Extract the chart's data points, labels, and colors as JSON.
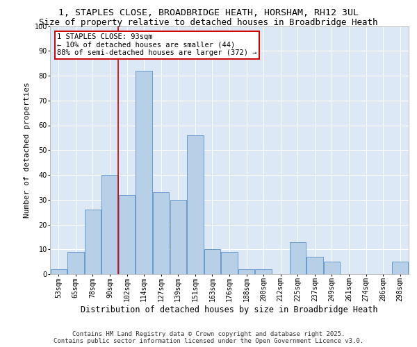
{
  "title_line1": "1, STAPLES CLOSE, BROADBRIDGE HEATH, HORSHAM, RH12 3UL",
  "title_line2": "Size of property relative to detached houses in Broadbridge Heath",
  "xlabel": "Distribution of detached houses by size in Broadbridge Heath",
  "ylabel": "Number of detached properties",
  "categories": [
    "53sqm",
    "65sqm",
    "78sqm",
    "90sqm",
    "102sqm",
    "114sqm",
    "127sqm",
    "139sqm",
    "151sqm",
    "163sqm",
    "176sqm",
    "188sqm",
    "200sqm",
    "212sqm",
    "225sqm",
    "237sqm",
    "249sqm",
    "261sqm",
    "274sqm",
    "286sqm",
    "298sqm"
  ],
  "values": [
    2,
    9,
    26,
    40,
    32,
    82,
    33,
    30,
    56,
    10,
    9,
    2,
    2,
    0,
    13,
    7,
    5,
    0,
    0,
    0,
    5
  ],
  "bar_color": "#b8cfe8",
  "bar_edge_color": "#6699cc",
  "fig_bg_color": "#ffffff",
  "ax_bg_color": "#dce8f5",
  "grid_color": "#ffffff",
  "annotation_text": "1 STAPLES CLOSE: 93sqm\n← 10% of detached houses are smaller (44)\n88% of semi-detached houses are larger (372) →",
  "annotation_box_facecolor": "#ffffff",
  "annotation_box_edgecolor": "#cc0000",
  "vline_color": "#cc0000",
  "vline_x_idx": 3.5,
  "ylim": [
    0,
    100
  ],
  "yticks": [
    0,
    10,
    20,
    30,
    40,
    50,
    60,
    70,
    80,
    90,
    100
  ],
  "footer_text": "Contains HM Land Registry data © Crown copyright and database right 2025.\nContains public sector information licensed under the Open Government Licence v3.0.",
  "title_fontsize": 9.5,
  "subtitle_fontsize": 9,
  "tick_fontsize": 7,
  "ylabel_fontsize": 8,
  "xlabel_fontsize": 8.5,
  "annotation_fontsize": 7.5,
  "footer_fontsize": 6.5
}
